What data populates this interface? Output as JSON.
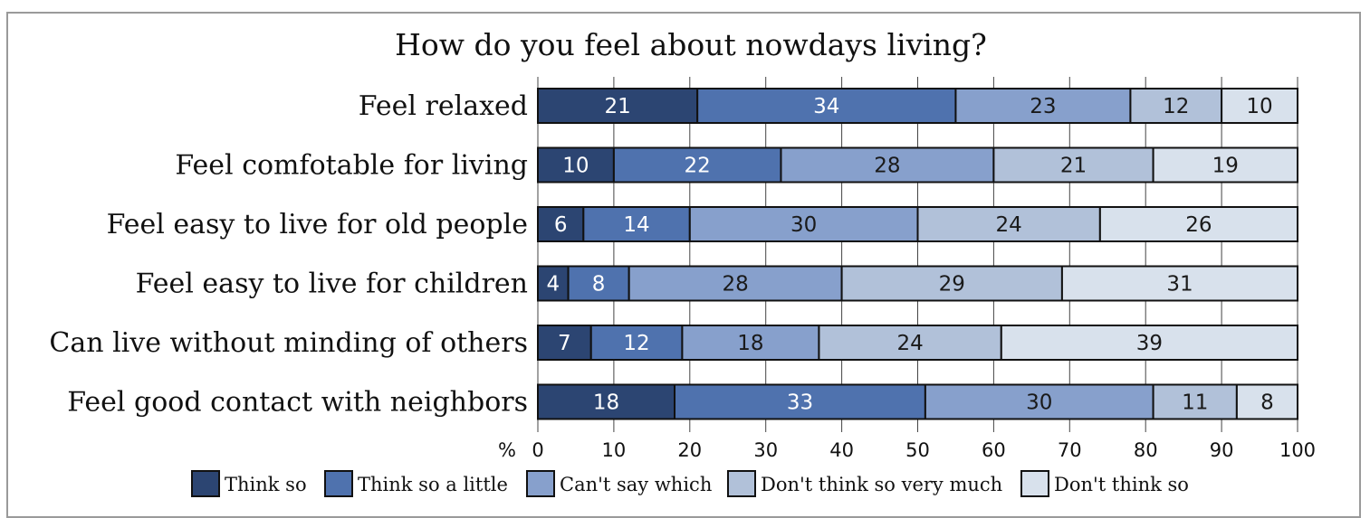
{
  "chart_data": {
    "type": "bar",
    "orientation": "horizontal",
    "stacked": true,
    "title": "How do you feel about nowdays living?",
    "categories": [
      "Feel relaxed",
      "Feel comfotable for living",
      "Feel easy to live for old people",
      "Feel easy to live for children",
      "Can live without minding of others",
      "Feel good contact with neighbors"
    ],
    "series": [
      {
        "name": "Think so",
        "color": "#2c4572",
        "values": [
          21,
          10,
          6,
          4,
          7,
          18
        ]
      },
      {
        "name": "Think so a little",
        "color": "#4f72ae",
        "values": [
          34,
          22,
          14,
          8,
          12,
          33
        ]
      },
      {
        "name": "Can't say which",
        "color": "#87a0cc",
        "values": [
          23,
          28,
          30,
          28,
          18,
          30
        ]
      },
      {
        "name": "Don't think so very much",
        "color": "#b1c1d9",
        "values": [
          12,
          21,
          24,
          29,
          24,
          11
        ]
      },
      {
        "name": "Don't think so",
        "color": "#d8e1ec",
        "values": [
          10,
          19,
          26,
          31,
          39,
          8
        ]
      }
    ],
    "xaxis_unit": "%",
    "xlim": [
      0,
      100
    ],
    "xticks": [
      0,
      10,
      20,
      30,
      40,
      50,
      60,
      70,
      80,
      90,
      100
    ],
    "grid": "vertical",
    "legend_position": "bottom"
  }
}
